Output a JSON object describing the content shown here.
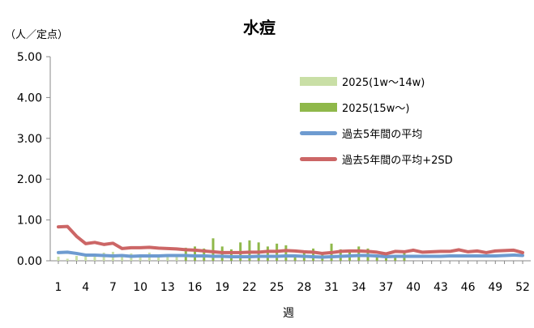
{
  "title": "水痘",
  "unit_label": "（人／定点）",
  "xlabel": "週",
  "colors": {
    "bar_early": "#c9dfa6",
    "bar_late": "#8fb84a",
    "avg_line": "#6e9bd0",
    "sd_line": "#cc6666",
    "axis": "#888888"
  },
  "legend": [
    {
      "label": "2025(1w〜14w)",
      "kind": "bar",
      "color_key": "bar_early"
    },
    {
      "label": "2025(15w〜)",
      "kind": "bar",
      "color_key": "bar_late"
    },
    {
      "label": "過去5年間の平均",
      "kind": "line",
      "color_key": "avg_line"
    },
    {
      "label": "過去5年間の平均+2SD",
      "kind": "line",
      "color_key": "sd_line"
    }
  ],
  "chart_data": {
    "type": "bar",
    "title": "水痘",
    "xlabel": "週",
    "ylabel": "（人／定点）",
    "ylim": [
      0,
      5
    ],
    "yticks": [
      "0.00",
      "1.00",
      "2.00",
      "3.00",
      "4.00",
      "5.00"
    ],
    "xticks": [
      1,
      4,
      7,
      10,
      13,
      16,
      19,
      22,
      25,
      28,
      31,
      34,
      37,
      40,
      43,
      46,
      49,
      52
    ],
    "grid": false,
    "legend_position": "top-right",
    "weeks": [
      1,
      2,
      3,
      4,
      5,
      6,
      7,
      8,
      9,
      10,
      11,
      12,
      13,
      14,
      15,
      16,
      17,
      18,
      19,
      20,
      21,
      22,
      23,
      24,
      25,
      26,
      27,
      28,
      29,
      30,
      31,
      32,
      33,
      34,
      35,
      36,
      37,
      38,
      39,
      40,
      41,
      42,
      43,
      44,
      45,
      46,
      47,
      48,
      49,
      50,
      51,
      52
    ],
    "series": [
      {
        "name": "2025(1w〜14w)",
        "kind": "bar",
        "weeks": [
          1,
          2,
          3,
          4,
          5,
          6,
          7,
          8,
          9,
          10,
          11,
          12,
          13,
          14
        ],
        "values": [
          0.1,
          0.05,
          0.12,
          0.12,
          0.15,
          0.2,
          0.22,
          0.14,
          0.18,
          0.15,
          0.2,
          0.15,
          0.12,
          0.16
        ]
      },
      {
        "name": "2025(15w〜)",
        "kind": "bar",
        "weeks": [
          15,
          16,
          17,
          18,
          19,
          20,
          21,
          22,
          23,
          24,
          25,
          26,
          27,
          28,
          29,
          30,
          31,
          32,
          33,
          34,
          35,
          36,
          37,
          38,
          39
        ],
        "values": [
          0.32,
          0.35,
          0.3,
          0.55,
          0.35,
          0.28,
          0.45,
          0.5,
          0.45,
          0.35,
          0.42,
          0.38,
          0.1,
          0.2,
          0.3,
          0.2,
          0.42,
          0.28,
          0.22,
          0.35,
          0.3,
          0.1,
          0.2,
          0.1,
          0.25
        ]
      },
      {
        "name": "過去5年間の平均",
        "kind": "line",
        "values": [
          0.2,
          0.21,
          0.18,
          0.14,
          0.14,
          0.13,
          0.12,
          0.13,
          0.11,
          0.12,
          0.12,
          0.12,
          0.13,
          0.13,
          0.13,
          0.12,
          0.12,
          0.11,
          0.11,
          0.1,
          0.1,
          0.1,
          0.11,
          0.11,
          0.11,
          0.12,
          0.12,
          0.11,
          0.1,
          0.09,
          0.1,
          0.11,
          0.12,
          0.13,
          0.13,
          0.12,
          0.1,
          0.11,
          0.11,
          0.11,
          0.11,
          0.11,
          0.11,
          0.12,
          0.12,
          0.12,
          0.12,
          0.12,
          0.12,
          0.13,
          0.14,
          0.13
        ]
      },
      {
        "name": "過去5年間の平均+2SD",
        "kind": "line",
        "values": [
          0.83,
          0.84,
          0.6,
          0.42,
          0.45,
          0.4,
          0.43,
          0.3,
          0.32,
          0.32,
          0.33,
          0.31,
          0.3,
          0.29,
          0.27,
          0.26,
          0.24,
          0.22,
          0.2,
          0.2,
          0.2,
          0.21,
          0.21,
          0.23,
          0.23,
          0.25,
          0.24,
          0.22,
          0.21,
          0.18,
          0.2,
          0.23,
          0.24,
          0.24,
          0.23,
          0.21,
          0.17,
          0.23,
          0.22,
          0.26,
          0.21,
          0.22,
          0.23,
          0.23,
          0.27,
          0.22,
          0.24,
          0.2,
          0.24,
          0.25,
          0.26,
          0.2
        ]
      }
    ]
  }
}
